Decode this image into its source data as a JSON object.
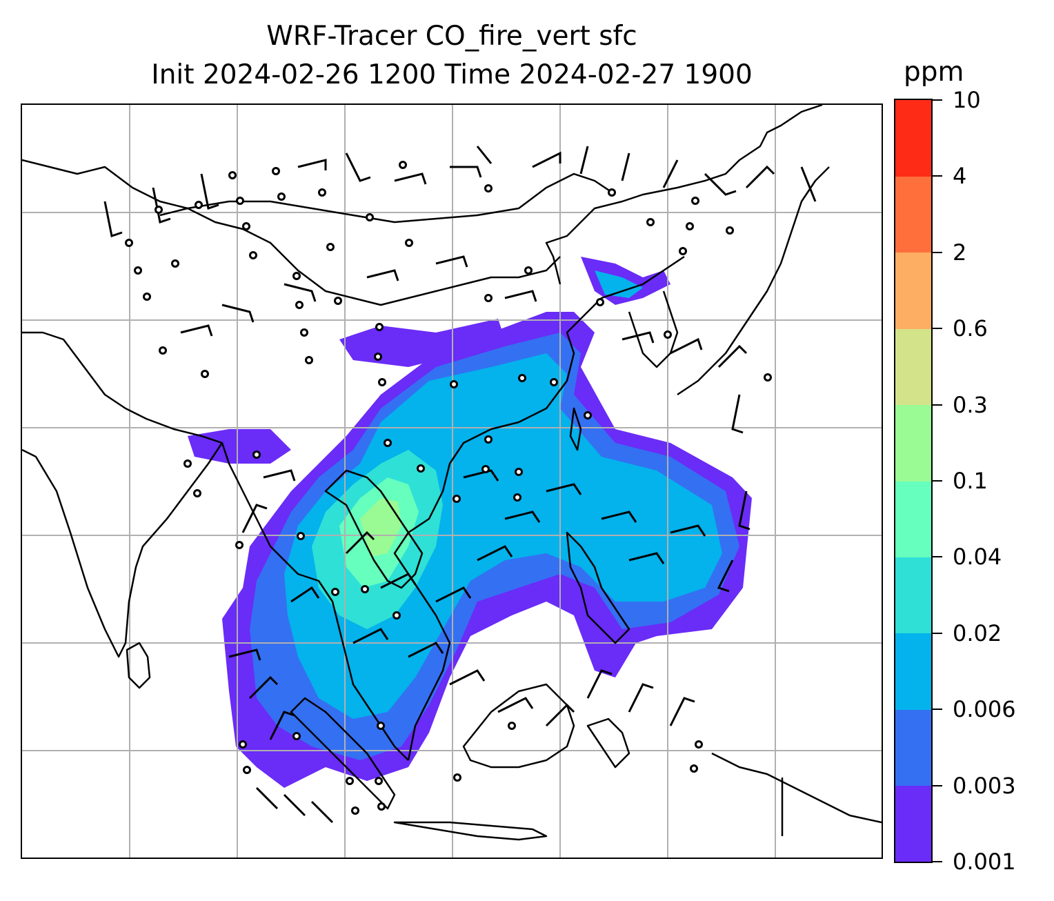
{
  "title": {
    "line1": "WRF-Tracer CO_fire_vert sfc",
    "line2": "Init 2024-02-26 1200 Time 2024-02-27 1900"
  },
  "colorbar": {
    "unit": "ppm",
    "ticks": [
      "0.001",
      "0.003",
      "0.006",
      "0.02",
      "0.04",
      "0.1",
      "0.3",
      "0.6",
      "2",
      "4",
      "10"
    ],
    "colors": [
      "#6a2cf7",
      "#3470f2",
      "#04b2ec",
      "#2ee0d6",
      "#66ffbe",
      "#9afa94",
      "#d3e38a",
      "#feae63",
      "#fe6f3c",
      "#fe2b17"
    ]
  },
  "map": {
    "gridlines": true,
    "gridline_color": "#b0b0b0",
    "coastline_color": "#000000",
    "overlay": "wind barbs and calm circles"
  }
}
